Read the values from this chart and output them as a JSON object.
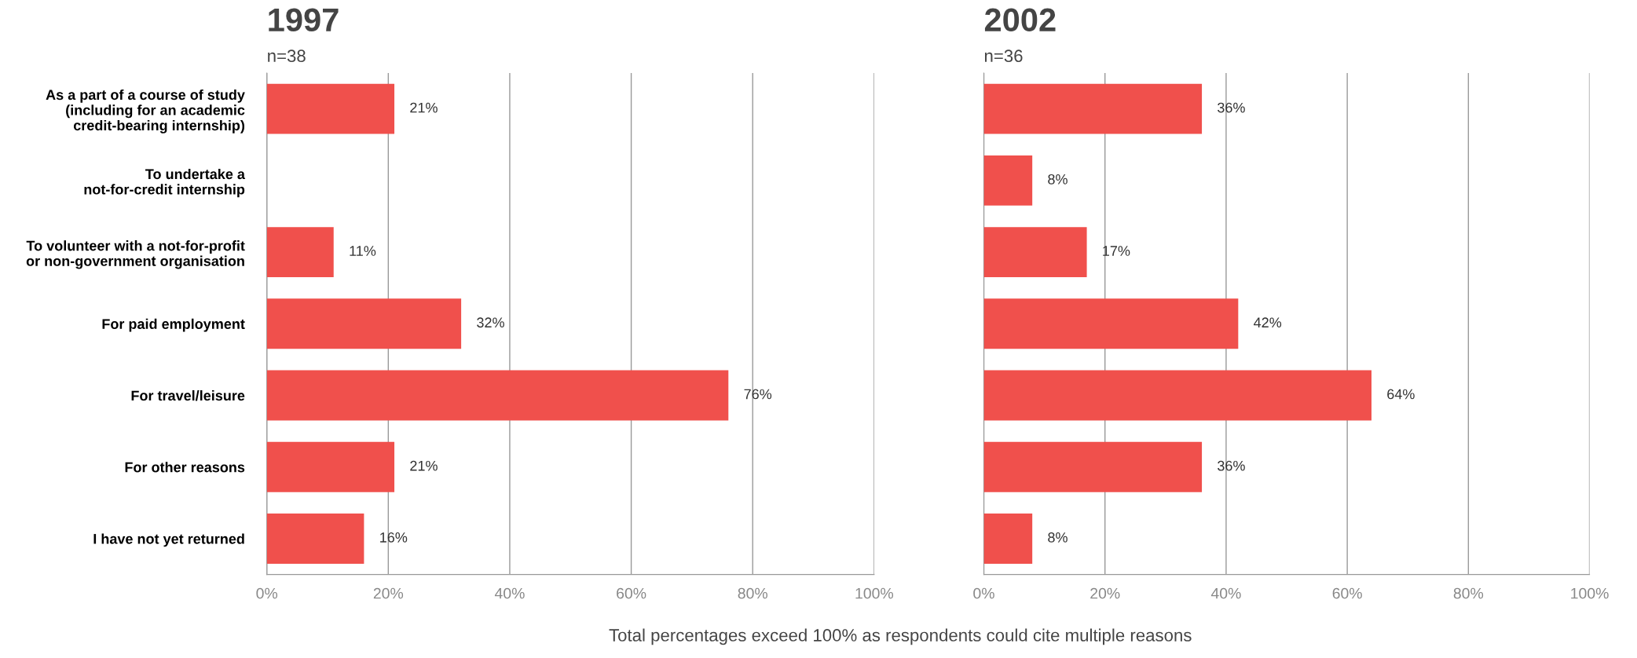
{
  "chart_data": [
    {
      "type": "bar",
      "orientation": "horizontal",
      "title": "1997",
      "subtitle": "n=38",
      "categories": [
        "As a part of a course of study\n(including for an academic\ncredit-bearing internship)",
        "To undertake a\nnot-for-credit internship",
        "To volunteer with a not-for-profit\nor non-government organisation",
        "For paid employment",
        "For travel/leisure",
        "For other reasons",
        "I have not yet returned"
      ],
      "values": [
        21,
        null,
        11,
        32,
        76,
        21,
        16
      ],
      "value_labels": [
        "21%",
        null,
        "11%",
        "32%",
        "76%",
        "21%",
        "16%"
      ],
      "color": "#f0504c",
      "xlim": [
        0,
        100
      ],
      "xticks": [
        {
          "value": 0,
          "label": "0%"
        },
        {
          "value": 20,
          "label": "20%"
        },
        {
          "value": 40,
          "label": "40%"
        },
        {
          "value": 60,
          "label": "60%"
        },
        {
          "value": 80,
          "label": "80%"
        },
        {
          "value": 100,
          "label": "100%"
        }
      ],
      "grid": "x",
      "annotations": [
        "Total percentages exceed 100% as respondents could cite multiple reasons"
      ]
    },
    {
      "type": "bar",
      "orientation": "horizontal",
      "title": "2002",
      "subtitle": "n=36",
      "categories": [
        null,
        null,
        null,
        null,
        null,
        null,
        null
      ],
      "values": [
        36,
        8,
        17,
        42,
        64,
        36,
        8
      ],
      "value_labels": [
        "36%",
        "8%",
        "17%",
        "42%",
        "64%",
        "36%",
        "8%"
      ],
      "color": "#f0504c",
      "xlim": [
        0,
        100
      ],
      "xticks": [
        {
          "value": 0,
          "label": "0%"
        },
        {
          "value": 20,
          "label": "20%"
        },
        {
          "value": 40,
          "label": "40%"
        },
        {
          "value": 60,
          "label": "60%"
        },
        {
          "value": 80,
          "label": "80%"
        },
        {
          "value": 100,
          "label": "100%"
        }
      ],
      "grid": "x",
      "tick_labels": "x"
    }
  ]
}
